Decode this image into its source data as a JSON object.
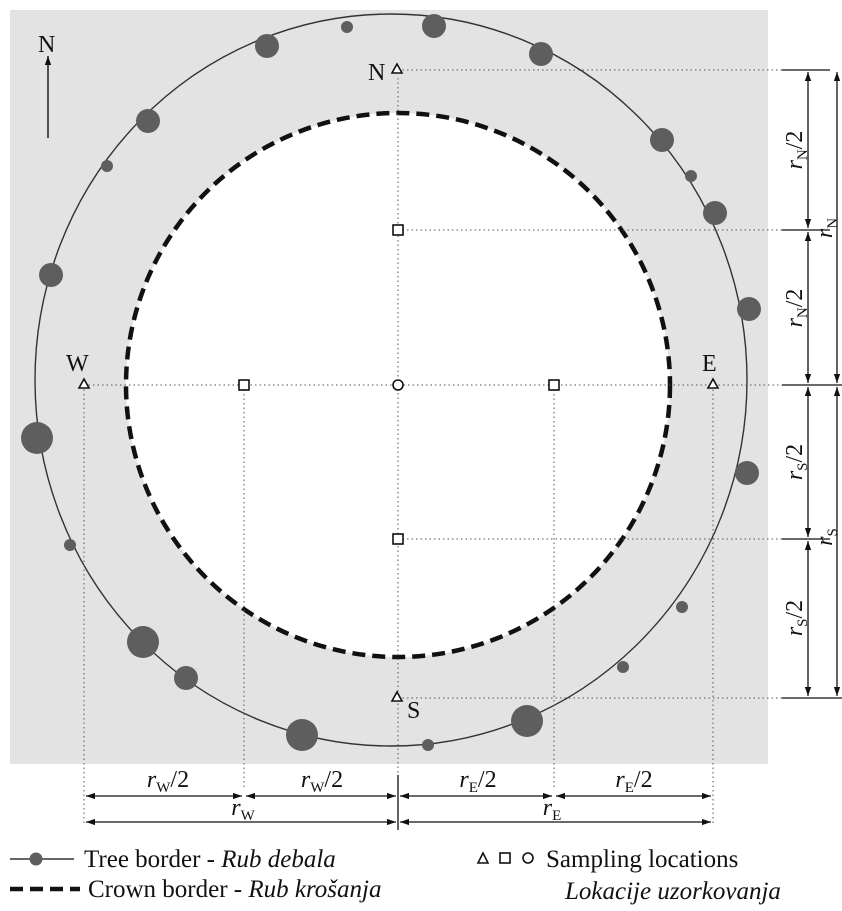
{
  "compass": {
    "label": "N"
  },
  "directions": {
    "north": "N",
    "south": "S",
    "west": "W",
    "east": "E"
  },
  "dimensions": {
    "r_letter": "r",
    "half_suffix": "/2",
    "sub_n": "N",
    "sub_s": "S",
    "sub_w": "W",
    "sub_e": "E"
  },
  "legend": {
    "tree_border_en": "Tree border - ",
    "tree_border_local": "Rub debala",
    "crown_border_en": "Crown border - ",
    "crown_border_local": "Rub krošanja",
    "sampling_en": "Sampling locations",
    "sampling_local": "Lokacije uzorkovanja"
  },
  "colors": {
    "plot_background": "#e3e3e3",
    "tree_fill": "#5e5e5e",
    "line": "#111111"
  }
}
